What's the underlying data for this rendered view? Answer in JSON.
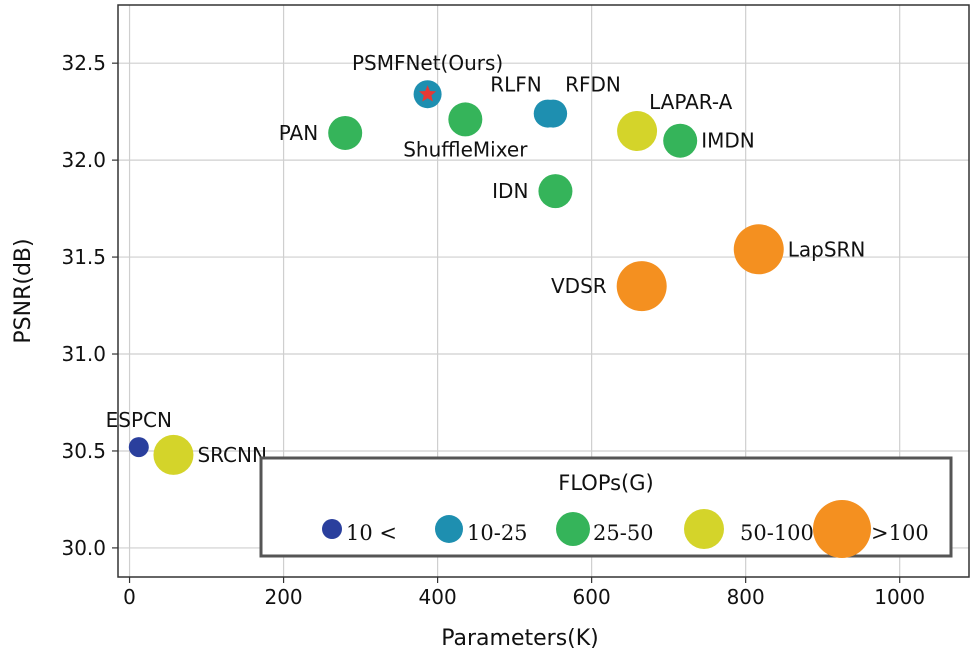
{
  "chart_data": {
    "type": "scatter",
    "xlabel": "Parameters(K)",
    "ylabel": "PSNR(dB)",
    "xlim": [
      -15,
      1090
    ],
    "ylim": [
      29.85,
      32.8
    ],
    "xticks": [
      0,
      200,
      400,
      600,
      800,
      1000
    ],
    "xtick_labels": [
      "0",
      "200",
      "400",
      "600",
      "800",
      "1000"
    ],
    "yticks": [
      30.0,
      30.5,
      31.0,
      31.5,
      32.0,
      32.5
    ],
    "ytick_labels": [
      "30.0",
      "30.5",
      "31.0",
      "31.5",
      "32.0",
      "32.5"
    ],
    "grid": true,
    "points": [
      {
        "name": "ESPCN",
        "label": "ESPCN",
        "x": 12,
        "y": 30.52,
        "flops_class": "<10",
        "label_pos": "above"
      },
      {
        "name": "SRCNN",
        "label": "SRCNN",
        "x": 57,
        "y": 30.48,
        "flops_class": "50-100",
        "label_pos": "right"
      },
      {
        "name": "PAN",
        "label": "PAN",
        "x": 280,
        "y": 32.14,
        "flops_class": "25-50",
        "label_pos": "left"
      },
      {
        "name": "PSMFNet",
        "label": "PSMFNet(Ours)",
        "x": 387,
        "y": 32.34,
        "flops_class": "10-25",
        "label_pos": "above",
        "star": true
      },
      {
        "name": "ShuffleMixer",
        "label": "ShuffleMixer",
        "x": 436,
        "y": 32.21,
        "flops_class": "25-50",
        "label_pos": "below"
      },
      {
        "name": "RLFN",
        "label": "RLFN",
        "x": 543,
        "y": 32.24,
        "flops_class": "10-25",
        "label_pos": "above-left"
      },
      {
        "name": "RFDN",
        "label": "RFDN",
        "x": 550,
        "y": 32.24,
        "flops_class": "10-25",
        "label_pos": "above-right"
      },
      {
        "name": "IDN",
        "label": "IDN",
        "x": 553,
        "y": 31.84,
        "flops_class": "25-50",
        "label_pos": "left"
      },
      {
        "name": "LAPAR-A",
        "label": "LAPAR-A",
        "x": 659,
        "y": 32.15,
        "flops_class": "50-100",
        "label_pos": "above-right"
      },
      {
        "name": "IMDN",
        "label": "IMDN",
        "x": 715,
        "y": 32.1,
        "flops_class": "25-50",
        "label_pos": "right"
      },
      {
        "name": "VDSR",
        "label": "VDSR",
        "x": 665,
        "y": 31.35,
        "flops_class": ">100",
        "label_pos": "left"
      },
      {
        "name": "LapSRN",
        "label": "LapSRN",
        "x": 817,
        "y": 31.54,
        "flops_class": ">100",
        "label_pos": "right"
      }
    ],
    "legend": {
      "title": "FLOPs(G)",
      "placement": "bottom-right",
      "entries": [
        {
          "class": "<10",
          "label": "10 <"
        },
        {
          "class": "10-25",
          "label": "10-25"
        },
        {
          "class": "25-50",
          "label": "25-50"
        },
        {
          "class": "50-100",
          "label": "50-100"
        },
        {
          "class": ">100",
          "label": ">100"
        }
      ]
    },
    "class_colors": {
      "<10": "#2a3f9d",
      "10-25": "#1e8fb0",
      "25-50": "#35b45a",
      "50-100": "#d4d42a",
      ">100": "#f49020"
    },
    "star_color": "#e53935"
  }
}
